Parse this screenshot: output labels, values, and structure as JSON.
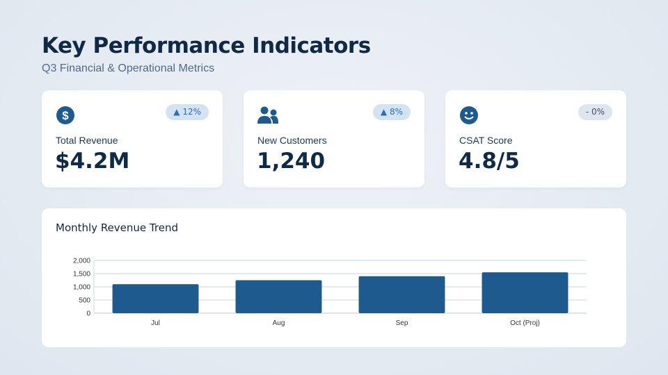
{
  "header": {
    "title": "Key Performance Indicators",
    "subtitle": "Q3 Financial & Operational Metrics"
  },
  "kpis": [
    {
      "icon": "dollar-icon",
      "label": "Total Revenue",
      "value": "$4.2M",
      "badge": "▲ 12%",
      "trend": "up"
    },
    {
      "icon": "users-icon",
      "label": "New Customers",
      "value": "1,240",
      "badge": "▲ 8%",
      "trend": "up"
    },
    {
      "icon": "smile-icon",
      "label": "CSAT Score",
      "value": "4.8/5",
      "badge": "- 0%",
      "trend": "flat"
    }
  ],
  "colors": {
    "accent": "#1f5a8e",
    "grid": "#dbe4ee"
  },
  "chart_data": {
    "type": "bar",
    "title": "Monthly Revenue Trend",
    "categories": [
      "Jul",
      "Aug",
      "Sep",
      "Oct (Proj)"
    ],
    "values": [
      1100,
      1250,
      1400,
      1550
    ],
    "ylim": [
      0,
      2000
    ],
    "yticks": [
      0,
      500,
      1000,
      1500,
      2000
    ],
    "ytick_labels": [
      "0",
      "500",
      "1,000",
      "1,500",
      "2,000"
    ],
    "grid": true,
    "xlabel": "",
    "ylabel": ""
  }
}
